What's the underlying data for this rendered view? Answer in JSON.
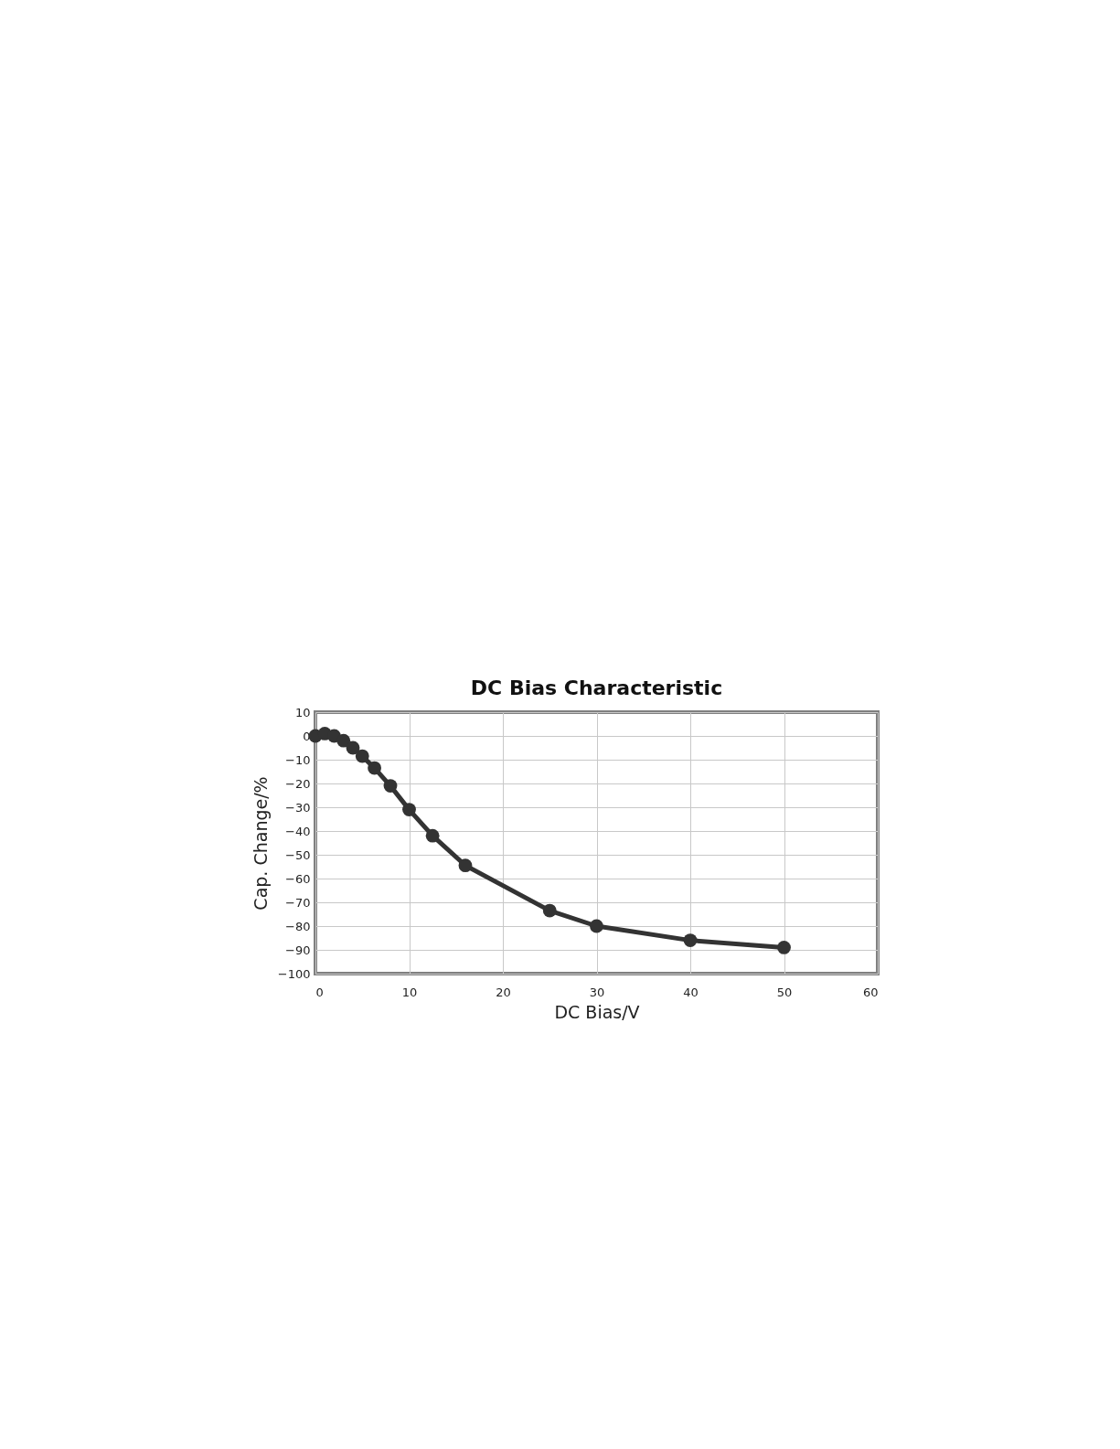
{
  "chart_data": {
    "type": "line",
    "title": "DC Bias Characteristic",
    "xlabel": "DC Bias/V",
    "ylabel": "Cap. Change/%",
    "series": [
      {
        "color": "#333333",
        "x": [
          0,
          1,
          2,
          3,
          4,
          5,
          6.3,
          8,
          10,
          12.5,
          16,
          25,
          30,
          40,
          50
        ],
        "values": [
          0,
          1,
          0,
          -2,
          -5,
          -8.5,
          -13.5,
          -21,
          -31,
          -42,
          -54.5,
          -73.5,
          -80,
          -86,
          -89
        ]
      }
    ],
    "xlim": [
      0,
      60
    ],
    "xticks": [
      0,
      10,
      20,
      30,
      40,
      50,
      60
    ],
    "ylim": [
      -100,
      10
    ],
    "yticks": [
      10,
      0,
      -10,
      -20,
      -30,
      -40,
      -50,
      -60,
      -70,
      -80,
      -90,
      -100
    ],
    "grid": true,
    "marker": "circle",
    "line_style": "solid"
  }
}
